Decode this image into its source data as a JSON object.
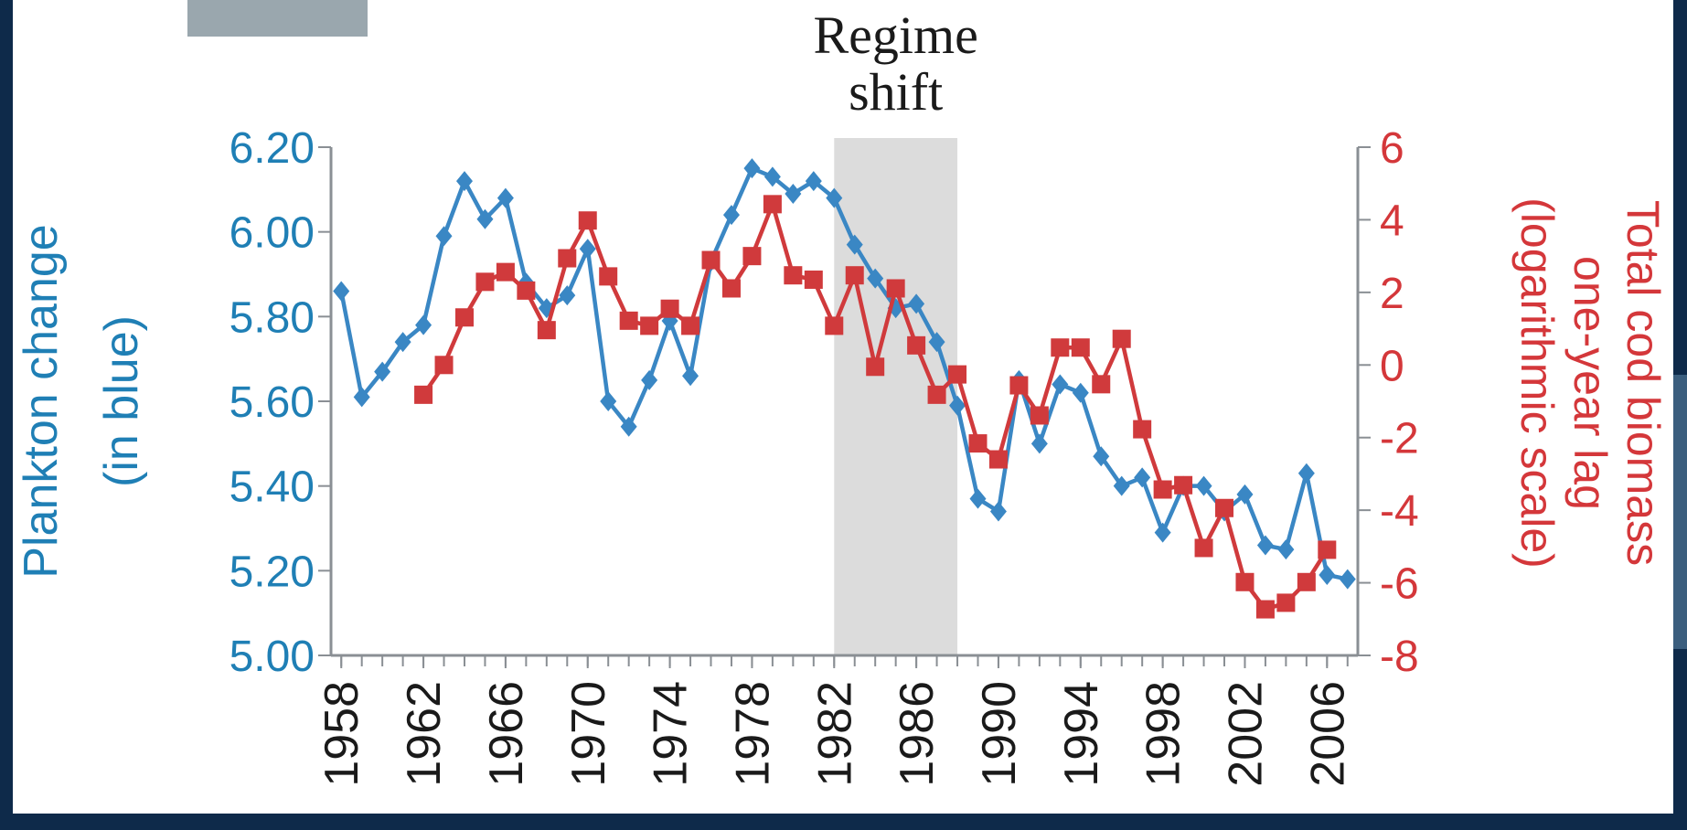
{
  "chart_data": {
    "type": "line",
    "title_lines": [
      "Regime",
      "shift"
    ],
    "shaded_span": [
      1982,
      1988
    ],
    "y_label_lines": [
      "Plankton change",
      "(in blue)"
    ],
    "y2_label_lines": [
      "Total cod biomass",
      "one-year lag",
      "(logarithmic scale)"
    ],
    "x": [
      1958,
      1959,
      1960,
      1961,
      1962,
      1963,
      1964,
      1965,
      1966,
      1967,
      1968,
      1969,
      1970,
      1971,
      1972,
      1973,
      1974,
      1975,
      1976,
      1977,
      1978,
      1979,
      1980,
      1981,
      1982,
      1983,
      1984,
      1985,
      1986,
      1987,
      1988,
      1989,
      1990,
      1991,
      1992,
      1993,
      1994,
      1995,
      1996,
      1997,
      1998,
      1999,
      2000,
      2001,
      2002,
      2003,
      2004,
      2005,
      2006,
      2007
    ],
    "xlim": [
      1957.5,
      2007.5
    ],
    "xticks": [
      1958,
      1962,
      1966,
      1970,
      1974,
      1978,
      1982,
      1986,
      1990,
      1994,
      1998,
      2002,
      2006
    ],
    "ylim": [
      5.0,
      6.2
    ],
    "yticks": [
      {
        "value": 5.0,
        "label": "5.00"
      },
      {
        "value": 5.2,
        "label": "5.20"
      },
      {
        "value": 5.4,
        "label": "5.40"
      },
      {
        "value": 5.6,
        "label": "5.60"
      },
      {
        "value": 5.8,
        "label": "5.80"
      },
      {
        "value": 6.0,
        "label": "6.00"
      },
      {
        "value": 6.2,
        "label": "6.20"
      }
    ],
    "y2lim": [
      -8,
      6
    ],
    "y2ticks": [
      -8,
      -6,
      -4,
      -2,
      0,
      2,
      4,
      6
    ],
    "series": [
      {
        "name": "Plankton change",
        "color": "#3a87c4",
        "marker": "diamond",
        "values": [
          5.86,
          5.61,
          5.67,
          5.74,
          5.78,
          5.99,
          6.12,
          6.03,
          6.08,
          5.88,
          5.82,
          5.85,
          5.96,
          5.6,
          5.54,
          5.65,
          5.79,
          5.66,
          5.93,
          6.04,
          6.15,
          6.13,
          6.09,
          6.12,
          6.08,
          5.97,
          5.89,
          5.82,
          5.83,
          5.74,
          5.59,
          5.37,
          5.34,
          5.65,
          5.5,
          5.64,
          5.62,
          5.47,
          5.4,
          5.42,
          5.29,
          5.4,
          5.4,
          5.34,
          5.38,
          5.26,
          5.25,
          5.43,
          5.19,
          5.18
        ]
      },
      {
        "name": "Total cod biomass",
        "color": "#d03a3c",
        "marker": "square",
        "axis": "y2",
        "values": [
          null,
          null,
          null,
          null,
          -0.82,
          0.0,
          1.31,
          2.29,
          2.56,
          2.05,
          0.96,
          2.94,
          3.98,
          2.44,
          1.22,
          1.08,
          1.55,
          1.08,
          2.89,
          2.11,
          3.0,
          4.43,
          2.47,
          2.35,
          1.08,
          2.47,
          -0.05,
          2.11,
          0.54,
          -0.82,
          -0.26,
          -2.16,
          -2.6,
          -0.56,
          -1.39,
          0.48,
          0.48,
          -0.53,
          0.72,
          -1.77,
          -3.43,
          -3.31,
          -5.04,
          -3.94,
          -5.98,
          -6.73,
          -6.55,
          -5.98,
          -5.09,
          null
        ]
      }
    ],
    "y_label_color": "#1f7fb5",
    "y2_label_color": "#d4373a"
  }
}
